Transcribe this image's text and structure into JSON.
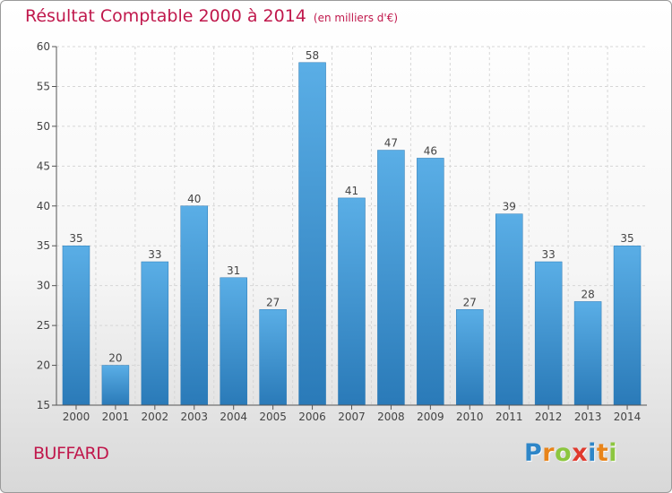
{
  "chart_data": {
    "type": "bar",
    "title": "Résultat Comptable 2000 à 2014",
    "subtitle": "(en milliers d'€)",
    "xlabel": "",
    "ylabel": "",
    "categories": [
      "2000",
      "2001",
      "2002",
      "2003",
      "2004",
      "2005",
      "2006",
      "2007",
      "2008",
      "2009",
      "2010",
      "2011",
      "2012",
      "2013",
      "2014"
    ],
    "values": [
      35,
      20,
      33,
      40,
      31,
      27,
      58,
      41,
      47,
      46,
      27,
      39,
      33,
      28,
      35
    ],
    "ylim": [
      15,
      60
    ],
    "yticks": [
      15,
      20,
      25,
      30,
      35,
      40,
      45,
      50,
      55,
      60
    ],
    "grid": true,
    "data_labels": true,
    "bar_color_top": "#5aaee6",
    "bar_color_bottom": "#2a7ab8"
  },
  "commune": "BUFFARD",
  "logo": {
    "letters": [
      {
        "char": "P",
        "color": "#2e86c8"
      },
      {
        "char": "r",
        "color": "#e8841a"
      },
      {
        "char": "o",
        "color": "#8cc63f"
      },
      {
        "char": "x",
        "color": "#e03a2e"
      },
      {
        "char": "i",
        "color": "#2e86c8"
      },
      {
        "char": "t",
        "color": "#e8841a"
      },
      {
        "char": "i",
        "color": "#8cc63f"
      }
    ]
  },
  "colors": {
    "title": "#c0184c",
    "axis": "#555555",
    "grid": "#d6d6d6"
  }
}
